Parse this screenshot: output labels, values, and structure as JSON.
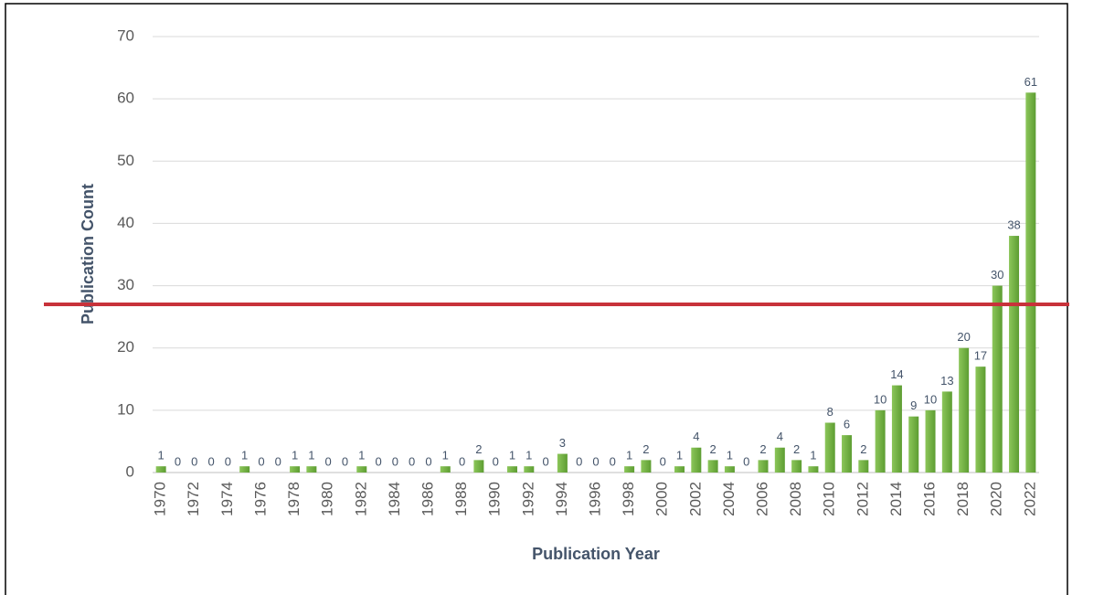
{
  "chart_data": {
    "type": "bar",
    "x_label": "Publication Year",
    "y_label": "Publication Count",
    "categories": [
      "1970",
      null,
      "1972",
      null,
      "1974",
      null,
      "1976",
      null,
      "1978",
      null,
      "1980",
      null,
      "1982",
      null,
      "1984",
      null,
      "1986",
      null,
      "1988",
      null,
      "1990",
      null,
      "1992",
      null,
      "1994",
      null,
      "1996",
      null,
      "1998",
      null,
      "2000",
      null,
      "2002",
      null,
      "2004",
      null,
      "2006",
      null,
      "2008",
      null,
      "2010",
      null,
      "2012",
      null,
      "2014",
      null,
      "2016",
      null,
      "2018",
      null,
      "2020",
      null,
      "2022"
    ],
    "values": [
      1,
      0,
      0,
      0,
      0,
      1,
      0,
      0,
      1,
      1,
      0,
      0,
      1,
      0,
      0,
      0,
      0,
      1,
      0,
      2,
      0,
      1,
      1,
      0,
      3,
      0,
      0,
      0,
      1,
      2,
      0,
      1,
      4,
      2,
      1,
      0,
      2,
      4,
      2,
      1,
      8,
      6,
      2,
      10,
      14,
      9,
      10,
      13,
      20,
      17,
      30,
      38,
      61
    ],
    "color": "#70ad47",
    "ylim": [
      0,
      70
    ],
    "yticks": [
      0,
      10,
      20,
      30,
      40,
      50,
      60,
      70
    ],
    "grid": true,
    "reference_line": {
      "value": 27,
      "color": "#c8323a"
    }
  }
}
